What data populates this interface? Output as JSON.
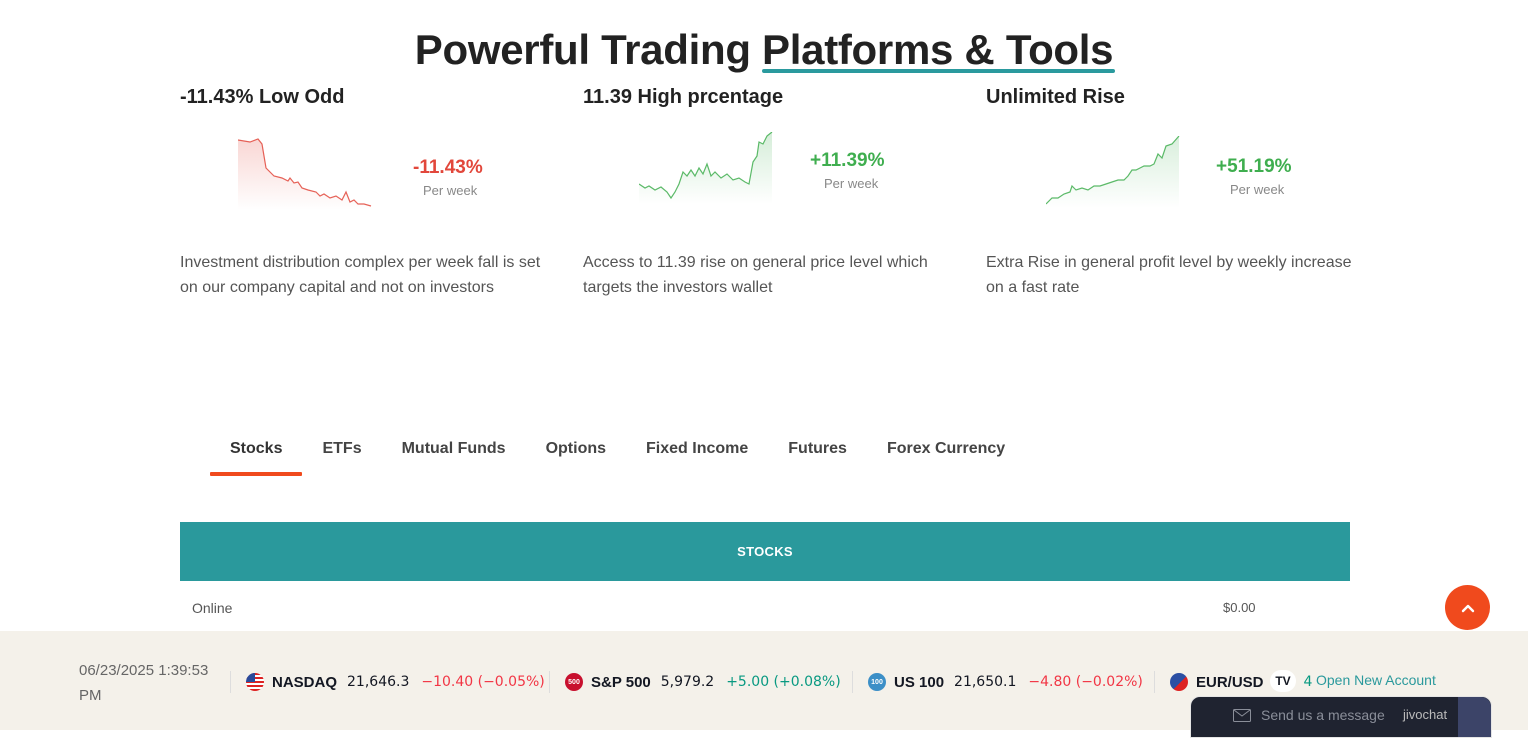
{
  "header": {
    "title_prefix": "Powerful Trading ",
    "title_highlight": "Platforms & Tools"
  },
  "cards": [
    {
      "title": "-11.43% Low Odd",
      "change": "-11.43%",
      "period": "Per week",
      "description": "Investment distribution complex per week fall is set on our company capital and not on investors",
      "color": "#e2473b"
    },
    {
      "title": "11.39 High prcentage",
      "change": "+11.39%",
      "period": "Per week",
      "description": "Access to 11.39 rise on general price level which targets the investors wallet",
      "color": "#3fae4f"
    },
    {
      "title": "Unlimited Rise",
      "change": "+51.19%",
      "period": "Per week",
      "description": "Extra Rise in general profit level by weekly increase on a fast rate",
      "color": "#3fae4f"
    }
  ],
  "tabs": [
    {
      "label": "Stocks",
      "active": true
    },
    {
      "label": "ETFs"
    },
    {
      "label": "Mutual Funds"
    },
    {
      "label": "Options"
    },
    {
      "label": "Fixed Income"
    },
    {
      "label": "Futures"
    },
    {
      "label": "Forex Currency"
    }
  ],
  "table": {
    "header": "STOCKS",
    "rows": [
      {
        "label": "Online",
        "price": "$0.00"
      }
    ]
  },
  "ticker": {
    "datetime": "06/23/2025 1:39:53 PM",
    "items": [
      {
        "symbol": "NASDAQ",
        "value": "21,646.3",
        "change": "−10.40 (−0.05%)",
        "direction": "down",
        "icon": "us-flag-icon"
      },
      {
        "symbol": "S&P 500",
        "value": "5,979.2",
        "change": "+5.00 (+0.08%)",
        "direction": "up",
        "icon_text": "500"
      },
      {
        "symbol": "US 100",
        "value": "21,650.1",
        "change": "−4.80 (−0.02%)",
        "direction": "down",
        "icon_text": "100"
      },
      {
        "symbol": "EUR/USD",
        "value": "",
        "change": "4",
        "direction": "up",
        "icon": "eu-us-flag-icon"
      }
    ],
    "open_account": "Open New Account",
    "tv_logo": "TV"
  },
  "chat": {
    "placeholder": "Send us a message",
    "brand": "jivochat"
  },
  "colors": {
    "accent": "#2a999c",
    "tab_active": "#f04a1d",
    "negative": "#e2473b",
    "positive": "#3fae4f"
  }
}
